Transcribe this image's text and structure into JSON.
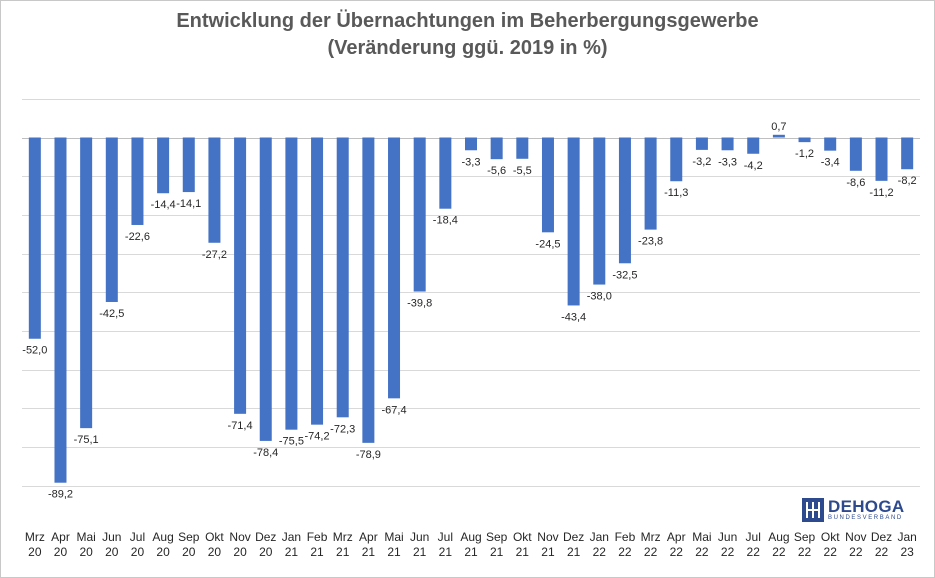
{
  "chart_data": {
    "type": "bar",
    "title": "Entwicklung der Übernachtungen im Beherbergungsgewerbe",
    "subtitle": "(Veränderung ggü. 2019 in %)",
    "xlabel": "",
    "ylabel": "",
    "ylim": [
      -90,
      10
    ],
    "grid": true,
    "legend": "none",
    "bar_color": "#4472c4",
    "categories": [
      [
        "Mrz",
        "20"
      ],
      [
        "Apr",
        "20"
      ],
      [
        "Mai",
        "20"
      ],
      [
        "Jun",
        "20"
      ],
      [
        "Jul",
        "20"
      ],
      [
        "Aug",
        "20"
      ],
      [
        "Sep",
        "20"
      ],
      [
        "Okt",
        "20"
      ],
      [
        "Nov",
        "20"
      ],
      [
        "Dez",
        "20"
      ],
      [
        "Jan",
        "21"
      ],
      [
        "Feb",
        "21"
      ],
      [
        "Mrz",
        "21"
      ],
      [
        "Apr",
        "21"
      ],
      [
        "Mai",
        "21"
      ],
      [
        "Jun",
        "21"
      ],
      [
        "Jul",
        "21"
      ],
      [
        "Aug",
        "21"
      ],
      [
        "Sep",
        "21"
      ],
      [
        "Okt",
        "21"
      ],
      [
        "Nov",
        "21"
      ],
      [
        "Dez",
        "21"
      ],
      [
        "Jan",
        "22"
      ],
      [
        "Feb",
        "22"
      ],
      [
        "Mrz",
        "22"
      ],
      [
        "Apr",
        "22"
      ],
      [
        "Mai",
        "22"
      ],
      [
        "Jun",
        "22"
      ],
      [
        "Jul",
        "22"
      ],
      [
        "Aug",
        "22"
      ],
      [
        "Sep",
        "22"
      ],
      [
        "Okt",
        "22"
      ],
      [
        "Nov",
        "22"
      ],
      [
        "Dez",
        "22"
      ],
      [
        "Jan",
        "23"
      ]
    ],
    "values": [
      -52.0,
      -89.2,
      -75.1,
      -42.5,
      -22.6,
      -14.4,
      -14.1,
      -27.2,
      -71.4,
      -78.4,
      -75.5,
      -74.2,
      -72.3,
      -78.9,
      -67.4,
      -39.8,
      -18.4,
      -3.3,
      -5.6,
      -5.5,
      -24.5,
      -43.4,
      -38.0,
      -32.5,
      -23.8,
      -11.3,
      -3.2,
      -3.3,
      -4.2,
      0.7,
      -1.2,
      -3.4,
      -8.6,
      -11.2,
      -8.2
    ],
    "data_labels": [
      "-52,0",
      "-89,2",
      "-75,1",
      "-42,5",
      "-22,6",
      "-14,4",
      "-14,1",
      "-27,2",
      "-71,4",
      "-78,4",
      "-75,5",
      "-74,2",
      "-72,3",
      "-78,9",
      "-67,4",
      "-39,8",
      "-18,4",
      "-3,3",
      "-5,6",
      "-5,5",
      "-24,5",
      "-43,4",
      "-38,0",
      "-32,5",
      "-23,8",
      "-11,3",
      "-3,2",
      "-3,3",
      "-4,2",
      "0,7",
      "-1,2",
      "-3,4",
      "-8,6",
      "-11,2",
      "-8,2"
    ]
  },
  "logo": {
    "name": "DEHOGA",
    "sub": "BUNDESVERBAND",
    "color": "#2e4a8e"
  }
}
